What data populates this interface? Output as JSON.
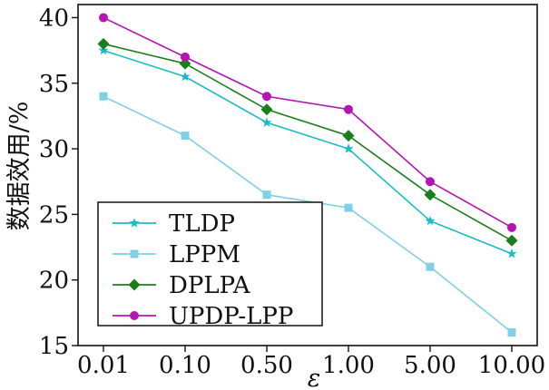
{
  "chart_data": {
    "type": "line",
    "title": "",
    "xlabel": "ε",
    "ylabel": "数据效用/%",
    "categories": [
      "0.01",
      "0.10",
      "0.50",
      "1.00",
      "5.00",
      "10.00"
    ],
    "ylim": [
      15,
      41
    ],
    "yticks": [
      15,
      20,
      25,
      30,
      35,
      40
    ],
    "grid": false,
    "legend_position": "bottom-left",
    "series": [
      {
        "name": "TLDP",
        "color": "#17bdc6",
        "marker": "star",
        "values": [
          37.5,
          35.5,
          32.0,
          30.0,
          24.5,
          22.0
        ]
      },
      {
        "name": "LPPM",
        "color": "#7fd0e6",
        "marker": "square",
        "values": [
          34.0,
          31.0,
          26.5,
          25.5,
          21.0,
          16.0
        ]
      },
      {
        "name": "DPLPA",
        "color": "#1a7f1a",
        "marker": "diamond",
        "values": [
          38.0,
          36.5,
          33.0,
          31.0,
          26.5,
          23.0
        ]
      },
      {
        "name": "UPDP-LPP",
        "color": "#b414b4",
        "marker": "circle",
        "values": [
          40.0,
          37.0,
          34.0,
          33.0,
          27.5,
          24.0
        ]
      }
    ]
  }
}
